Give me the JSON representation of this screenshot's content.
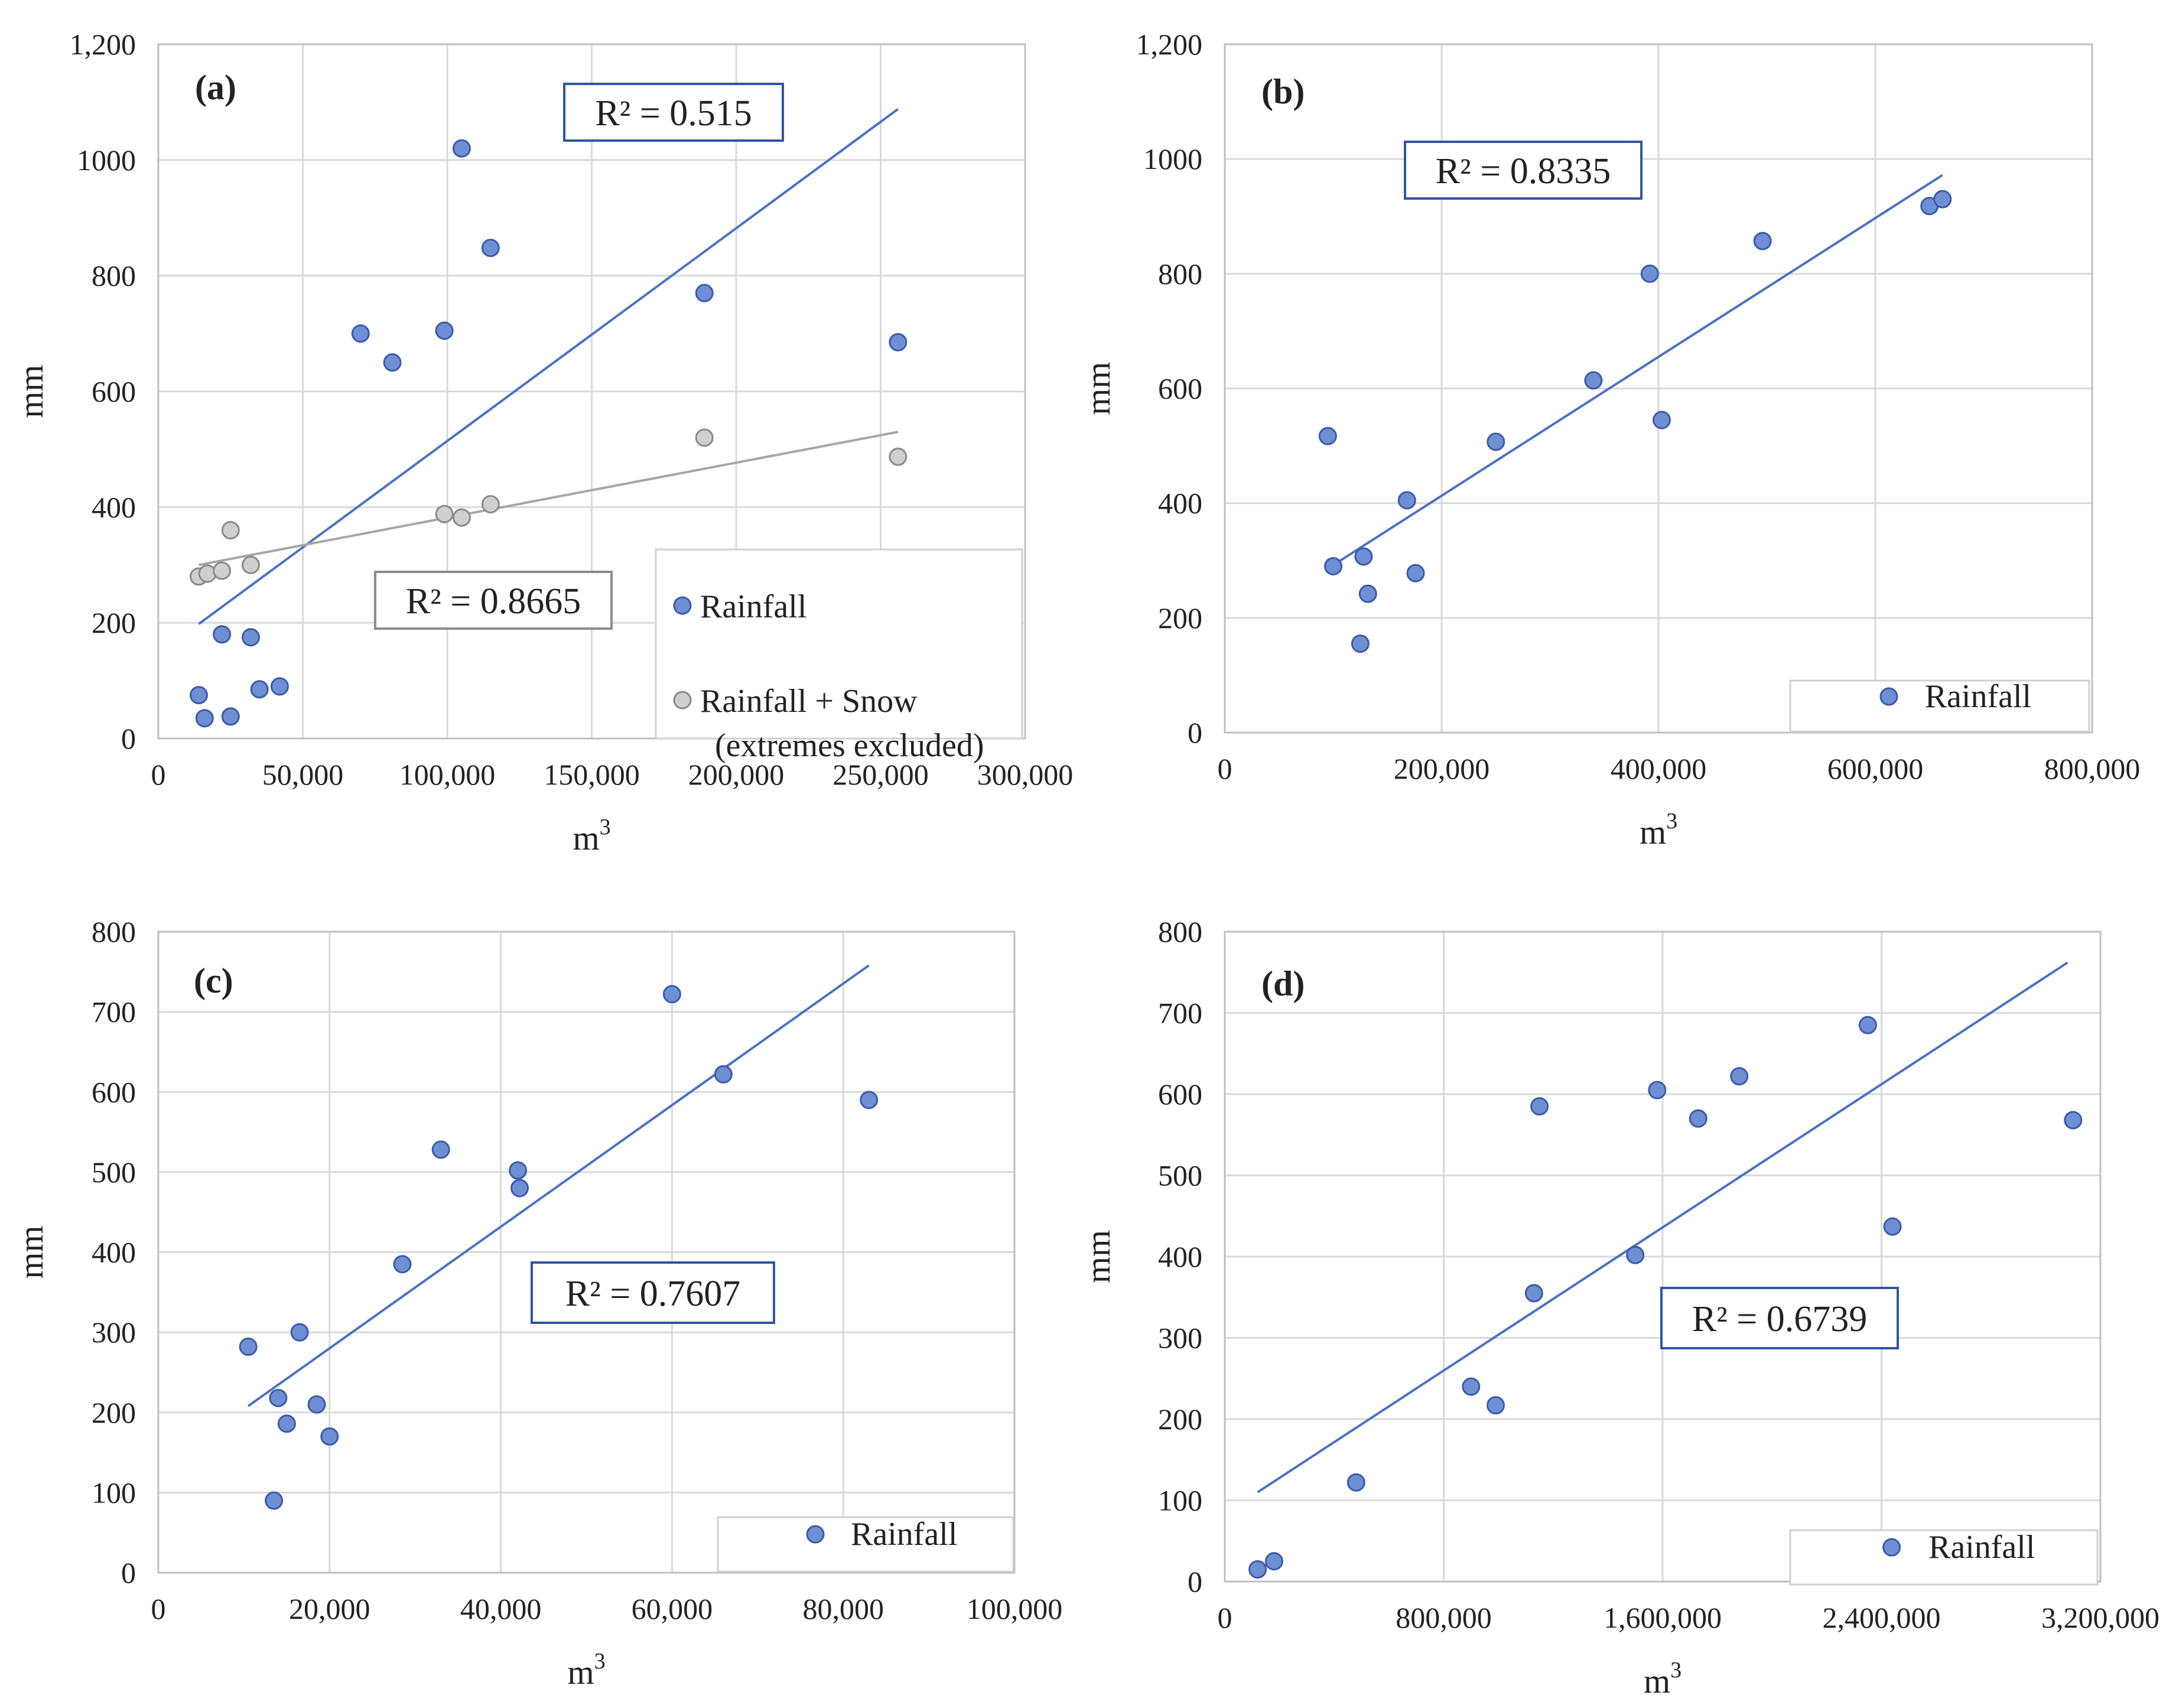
{
  "colors": {
    "rain_fill": "#6f8fd4",
    "rain_stroke": "#3a5ba8",
    "snow_fill": "#cfcfcf",
    "snow_stroke": "#8a8a8a",
    "rain_line": "#4a72c6",
    "snow_line": "#a6a6a6",
    "r2_box_blue": "#2f55a4",
    "r2_box_gray": "#8c8c8c"
  },
  "chart_data": [
    {
      "type": "scatter",
      "panel_label": "(a)",
      "xlabel": "m",
      "xlabel_superscript": "3",
      "ylabel": "mm",
      "xlim": [
        0,
        300000
      ],
      "ylim": [
        0,
        1200
      ],
      "x_ticks": [
        0,
        50000,
        100000,
        150000,
        200000,
        250000,
        300000
      ],
      "x_tick_labels": [
        "0",
        "50,000",
        "100,000",
        "150,000",
        "200,000",
        "250,000",
        "300,000"
      ],
      "y_ticks": [
        0,
        200,
        400,
        600,
        800,
        1000,
        1200
      ],
      "y_tick_labels": [
        "0",
        "200",
        "400",
        "600",
        "800",
        "1000",
        "1,200"
      ],
      "series": [
        {
          "name": "Rainfall",
          "style": "rain",
          "x": [
            14000,
            16000,
            25000,
            22000,
            32000,
            35000,
            42000,
            70000,
            81000,
            99000,
            105000,
            115000,
            189000,
            256000
          ],
          "y": [
            75,
            35,
            38,
            180,
            175,
            85,
            90,
            700,
            650,
            705,
            1020,
            848,
            770,
            685
          ],
          "trend": {
            "x1": 14000,
            "y1": 198,
            "x2": 256000,
            "y2": 1088,
            "r2_label": "R² = 0.515"
          }
        },
        {
          "name": "Rainfall + Snow (extremes excluded)",
          "style": "snow",
          "x": [
            14000,
            17000,
            22000,
            25000,
            32000,
            99000,
            105000,
            115000,
            189000,
            256000
          ],
          "y": [
            280,
            285,
            290,
            360,
            300,
            388,
            382,
            405,
            520,
            487
          ],
          "trend": {
            "x1": 14000,
            "y1": 300,
            "x2": 256000,
            "y2": 530,
            "r2_label": "R² = 0.8665"
          }
        }
      ],
      "legend": [
        {
          "label": "Rainfall",
          "style": "rain"
        },
        {
          "label": "Rainfall + Snow",
          "label2": "(extremes excluded)",
          "style": "snow"
        }
      ]
    },
    {
      "type": "scatter",
      "panel_label": "(b)",
      "xlabel": "m",
      "xlabel_superscript": "3",
      "ylabel": "mm",
      "xlim": [
        0,
        800000
      ],
      "ylim": [
        0,
        1200
      ],
      "x_ticks": [
        0,
        200000,
        400000,
        600000,
        800000
      ],
      "x_tick_labels": [
        "0",
        "200,000",
        "400,000",
        "600,000",
        "800,000"
      ],
      "y_ticks": [
        0,
        200,
        400,
        600,
        800,
        1000,
        1200
      ],
      "y_tick_labels": [
        "0",
        "200",
        "400",
        "600",
        "800",
        "1000",
        "1,200"
      ],
      "series": [
        {
          "name": "Rainfall",
          "style": "rain",
          "x": [
            95000,
            100000,
            125000,
            128000,
            132000,
            168000,
            176000,
            250000,
            340000,
            392000,
            403000,
            496000,
            650000,
            662000
          ],
          "y": [
            517,
            290,
            155,
            307,
            242,
            405,
            278,
            507,
            614,
            800,
            545,
            857,
            918,
            930
          ],
          "trend": {
            "x1": 100000,
            "y1": 292,
            "x2": 662000,
            "y2": 972,
            "r2_label": "R² = 0.8335"
          }
        }
      ],
      "legend": [
        {
          "label": "Rainfall",
          "style": "rain"
        }
      ]
    },
    {
      "type": "scatter",
      "panel_label": "(c)",
      "xlabel": "m",
      "xlabel_superscript": "3",
      "ylabel": "mm",
      "xlim": [
        0,
        100000
      ],
      "ylim": [
        0,
        800
      ],
      "x_ticks": [
        0,
        20000,
        40000,
        60000,
        80000,
        100000
      ],
      "x_tick_labels": [
        "0",
        "20,000",
        "40,000",
        "60,000",
        "80,000",
        "100,000"
      ],
      "y_ticks": [
        0,
        100,
        200,
        300,
        400,
        500,
        600,
        700,
        800
      ],
      "y_tick_labels": [
        "0",
        "100",
        "200",
        "300",
        "400",
        "500",
        "600",
        "700",
        "800"
      ],
      "series": [
        {
          "name": "Rainfall",
          "style": "rain",
          "x": [
            10500,
            13500,
            14000,
            15000,
            16500,
            18500,
            20000,
            28500,
            33000,
            42000,
            42200,
            60000,
            66000,
            83000
          ],
          "y": [
            282,
            90,
            218,
            186,
            300,
            210,
            170,
            385,
            528,
            502,
            480,
            722,
            622,
            590
          ],
          "trend": {
            "x1": 10500,
            "y1": 208,
            "x2": 83000,
            "y2": 758,
            "r2_label": "R² = 0.7607"
          }
        }
      ],
      "legend": [
        {
          "label": "Rainfall",
          "style": "rain"
        }
      ]
    },
    {
      "type": "scatter",
      "panel_label": "(d)",
      "xlabel": "m",
      "xlabel_superscript": "3",
      "ylabel": "mm",
      "xlim": [
        0,
        3200000
      ],
      "ylim": [
        0,
        800
      ],
      "x_ticks": [
        0,
        800000,
        1600000,
        2400000,
        3200000
      ],
      "x_tick_labels": [
        "0",
        "800,000",
        "1,600,000",
        "2,400,000",
        "3,200,000"
      ],
      "y_ticks": [
        0,
        100,
        200,
        300,
        400,
        500,
        600,
        700,
        800
      ],
      "y_tick_labels": [
        "0",
        "100",
        "200",
        "300",
        "400",
        "500",
        "600",
        "700",
        "800"
      ],
      "series": [
        {
          "name": "Rainfall",
          "style": "rain",
          "x": [
            120000,
            180000,
            480000,
            900000,
            990000,
            1130000,
            1150000,
            1500000,
            1580000,
            1730000,
            1880000,
            2350000,
            2440000,
            3100000
          ],
          "y": [
            15,
            25,
            122,
            240,
            217,
            355,
            585,
            402,
            605,
            570,
            622,
            685,
            437,
            568
          ],
          "trend": {
            "x1": 120000,
            "y1": 110,
            "x2": 3080000,
            "y2": 762,
            "r2_label": "R² = 0.6739"
          }
        }
      ],
      "legend": [
        {
          "label": "Rainfall",
          "style": "rain"
        }
      ]
    }
  ]
}
